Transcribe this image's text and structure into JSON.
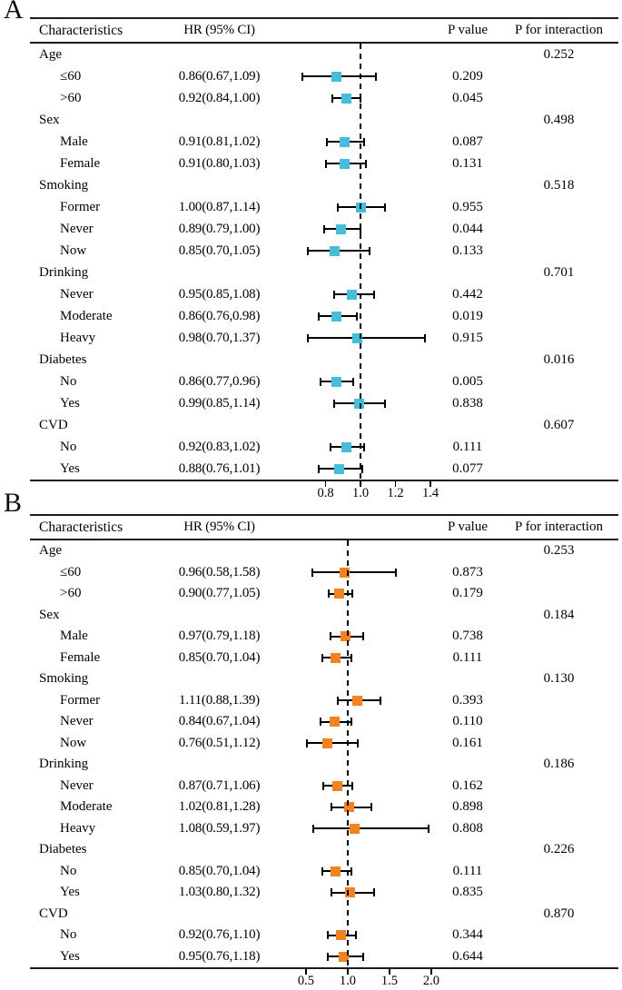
{
  "chart_data": [
    {
      "type": "scatter",
      "subtype": "forest-plot",
      "panel_label": "A",
      "col_headers": [
        "Characteristics",
        "HR (95% CI)",
        "P value",
        "P for interaction"
      ],
      "marker_color": "#47bdda",
      "axis": {
        "scale": "linear",
        "domain_min": 0.496,
        "domain_max": 1.431,
        "ref_line": 1.0,
        "ticks": [
          0.8,
          1.0,
          1.2,
          1.4
        ],
        "tick_labels": [
          "0.8",
          "1.0",
          "1.2",
          "1.4"
        ]
      },
      "rows": [
        {
          "group": true,
          "label": "Age",
          "p_interaction": "0.252"
        },
        {
          "label": "≤60",
          "hr_text": "0.86(0.67,1.09)",
          "hr": 0.86,
          "lo": 0.67,
          "hi": 1.09,
          "p_value": "0.209"
        },
        {
          "label": ">60",
          "hr_text": "0.92(0.84,1.00)",
          "hr": 0.92,
          "lo": 0.84,
          "hi": 1.0,
          "p_value": "0.045"
        },
        {
          "group": true,
          "label": "Sex",
          "p_interaction": "0.498"
        },
        {
          "label": "Male",
          "hr_text": "0.91(0.81,1.02)",
          "hr": 0.91,
          "lo": 0.81,
          "hi": 1.02,
          "p_value": "0.087"
        },
        {
          "label": "Female",
          "hr_text": "0.91(0.80,1.03)",
          "hr": 0.91,
          "lo": 0.8,
          "hi": 1.03,
          "p_value": "0.131"
        },
        {
          "group": true,
          "label": "Smoking",
          "p_interaction": "0.518"
        },
        {
          "label": "Former",
          "hr_text": "1.00(0.87,1.14)",
          "hr": 1.0,
          "lo": 0.87,
          "hi": 1.14,
          "p_value": "0.955"
        },
        {
          "label": "Never",
          "hr_text": "0.89(0.79,1.00)",
          "hr": 0.89,
          "lo": 0.79,
          "hi": 1.0,
          "p_value": "0.044"
        },
        {
          "label": "Now",
          "hr_text": "0.85(0.70,1.05)",
          "hr": 0.85,
          "lo": 0.7,
          "hi": 1.05,
          "p_value": "0.133"
        },
        {
          "group": true,
          "label": "Drinking",
          "p_interaction": "0.701"
        },
        {
          "label": "Never",
          "hr_text": "0.95(0.85,1.08)",
          "hr": 0.95,
          "lo": 0.85,
          "hi": 1.08,
          "p_value": "0.442"
        },
        {
          "label": "Moderate",
          "hr_text": "0.86(0.76,0.98)",
          "hr": 0.86,
          "lo": 0.76,
          "hi": 0.98,
          "p_value": "0.019"
        },
        {
          "label": "Heavy",
          "hr_text": "0.98(0.70,1.37)",
          "hr": 0.98,
          "lo": 0.7,
          "hi": 1.37,
          "p_value": "0.915"
        },
        {
          "group": true,
          "label": "Diabetes",
          "p_interaction": "0.016"
        },
        {
          "label": "No",
          "hr_text": "0.86(0.77,0.96)",
          "hr": 0.86,
          "lo": 0.77,
          "hi": 0.96,
          "p_value": "0.005"
        },
        {
          "label": "Yes",
          "hr_text": "0.99(0.85,1.14)",
          "hr": 0.99,
          "lo": 0.85,
          "hi": 1.14,
          "p_value": "0.838"
        },
        {
          "group": true,
          "label": "CVD",
          "p_interaction": "0.607"
        },
        {
          "label": "No",
          "hr_text": "0.92(0.83,1.02)",
          "hr": 0.92,
          "lo": 0.83,
          "hi": 1.02,
          "p_value": "0.111"
        },
        {
          "label": "Yes",
          "hr_text": "0.88(0.76,1.01)",
          "hr": 0.88,
          "lo": 0.76,
          "hi": 1.01,
          "p_value": "0.077"
        }
      ]
    },
    {
      "type": "scatter",
      "subtype": "forest-plot",
      "panel_label": "B",
      "col_headers": [
        "Characteristics",
        "HR (95% CI)",
        "P value",
        "P for interaction"
      ],
      "marker_color": "#f28222",
      "axis": {
        "scale": "linear",
        "domain_min": 0.098,
        "domain_max": 2.055,
        "ref_line": 1.0,
        "ticks": [
          0.5,
          1.0,
          1.5,
          2.0
        ],
        "tick_labels": [
          "0.5",
          "1.0",
          "1.5",
          "2.0"
        ]
      },
      "rows": [
        {
          "group": true,
          "label": "Age",
          "p_interaction": "0.253"
        },
        {
          "label": "≤60",
          "hr_text": "0.96(0.58,1.58)",
          "hr": 0.96,
          "lo": 0.58,
          "hi": 1.58,
          "p_value": "0.873"
        },
        {
          "label": ">60",
          "hr_text": "0.90(0.77,1.05)",
          "hr": 0.9,
          "lo": 0.77,
          "hi": 1.05,
          "p_value": "0.179"
        },
        {
          "group": true,
          "label": "Sex",
          "p_interaction": "0.184"
        },
        {
          "label": "Male",
          "hr_text": "0.97(0.79,1.18)",
          "hr": 0.97,
          "lo": 0.79,
          "hi": 1.18,
          "p_value": "0.738"
        },
        {
          "label": "Female",
          "hr_text": "0.85(0.70,1.04)",
          "hr": 0.85,
          "lo": 0.7,
          "hi": 1.04,
          "p_value": "0.111"
        },
        {
          "group": true,
          "label": "Smoking",
          "p_interaction": "0.130"
        },
        {
          "label": "Former",
          "hr_text": "1.11(0.88,1.39)",
          "hr": 1.11,
          "lo": 0.88,
          "hi": 1.39,
          "p_value": "0.393"
        },
        {
          "label": "Never",
          "hr_text": "0.84(0.67,1.04)",
          "hr": 0.84,
          "lo": 0.67,
          "hi": 1.04,
          "p_value": "0.110"
        },
        {
          "label": "Now",
          "hr_text": "0.76(0.51,1.12)",
          "hr": 0.76,
          "lo": 0.51,
          "hi": 1.12,
          "p_value": "0.161"
        },
        {
          "group": true,
          "label": "Drinking",
          "p_interaction": "0.186"
        },
        {
          "label": "Never",
          "hr_text": "0.87(0.71,1.06)",
          "hr": 0.87,
          "lo": 0.71,
          "hi": 1.06,
          "p_value": "0.162"
        },
        {
          "label": "Moderate",
          "hr_text": "1.02(0.81,1.28)",
          "hr": 1.02,
          "lo": 0.81,
          "hi": 1.28,
          "p_value": "0.898"
        },
        {
          "label": "Heavy",
          "hr_text": "1.08(0.59,1.97)",
          "hr": 1.08,
          "lo": 0.59,
          "hi": 1.97,
          "p_value": "0.808"
        },
        {
          "group": true,
          "label": "Diabetes",
          "p_interaction": "0.226"
        },
        {
          "label": "No",
          "hr_text": "0.85(0.70,1.04)",
          "hr": 0.85,
          "lo": 0.7,
          "hi": 1.04,
          "p_value": "0.111"
        },
        {
          "label": "Yes",
          "hr_text": "1.03(0.80,1.32)",
          "hr": 1.03,
          "lo": 0.8,
          "hi": 1.32,
          "p_value": "0.835"
        },
        {
          "group": true,
          "label": "CVD",
          "p_interaction": "0.870"
        },
        {
          "label": "No",
          "hr_text": "0.92(0.76,1.10)",
          "hr": 0.92,
          "lo": 0.76,
          "hi": 1.1,
          "p_value": "0.344"
        },
        {
          "label": "Yes",
          "hr_text": "0.95(0.76,1.18)",
          "hr": 0.95,
          "lo": 0.76,
          "hi": 1.18,
          "p_value": "0.644"
        }
      ]
    }
  ]
}
